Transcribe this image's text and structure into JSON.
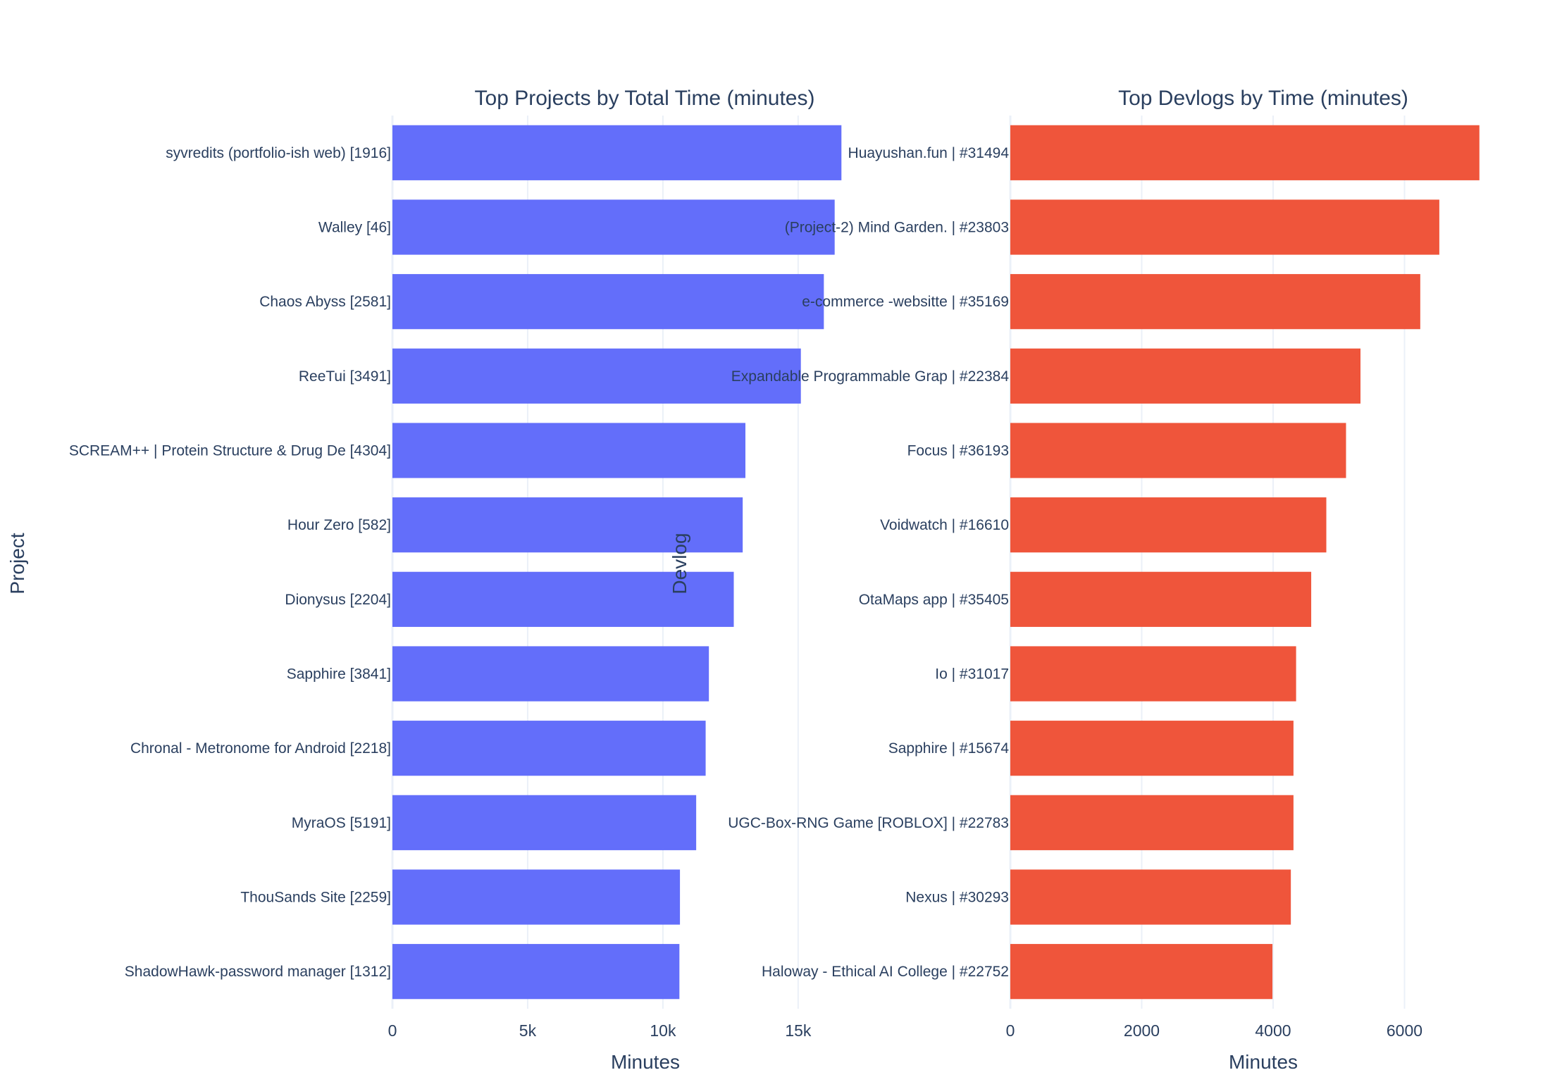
{
  "chart_data": [
    {
      "type": "bar",
      "orientation": "horizontal",
      "title": "Top Projects by Total Time (minutes)",
      "xlabel": "Minutes",
      "ylabel": "Project",
      "color": "#636efa",
      "xlim": [
        0,
        17400
      ],
      "xticks": [
        0,
        5000,
        10000,
        15000
      ],
      "xtick_labels": [
        "0",
        "5k",
        "10k",
        "15k"
      ],
      "grid": true,
      "categories": [
        "syvredits (portfolio-ish web) [1916]",
        "Walley [46]",
        "Chaos Abyss [2581]",
        "ReeTui [3491]",
        "SCREAM++ | Protein Structure & Drug De [4304]",
        "Hour Zero [582]",
        "Dionysus [2204]",
        "Sapphire [3841]",
        "Chronal - Metronome for Android [2218]",
        "MyraOS [5191]",
        "ThouSands Site [2259]",
        "ShadowHawk-password manager [1312]"
      ],
      "values": [
        16600,
        16350,
        15950,
        15100,
        13050,
        12950,
        12620,
        11700,
        11580,
        11230,
        10630,
        10610
      ]
    },
    {
      "type": "bar",
      "orientation": "horizontal",
      "title": "Top Devlogs by Time (minutes)",
      "xlabel": "Minutes",
      "ylabel": "Devlog",
      "color": "#ef553b",
      "xlim": [
        0,
        7700
      ],
      "xticks": [
        0,
        2000,
        4000,
        6000
      ],
      "xtick_labels": [
        "0",
        "2000",
        "4000",
        "6000"
      ],
      "grid": true,
      "categories": [
        "Huayushan.fun | #31494",
        "(Project-2) Mind Garden. | #23803",
        "e-commerce -websitte | #35169",
        "Expandable Programmable Grap | #22384",
        "Focus | #36193",
        "Voidwatch | #16610",
        "OtaMaps app | #35405",
        "Io | #31017",
        "Sapphire | #15674",
        "UGC-Box-RNG Game [ROBLOX] | #22783",
        "Nexus | #30293",
        "Haloway - Ethical AI College | #22752"
      ],
      "values": [
        7140,
        6530,
        6240,
        5330,
        5110,
        4810,
        4580,
        4350,
        4310,
        4310,
        4270,
        3990
      ]
    }
  ]
}
